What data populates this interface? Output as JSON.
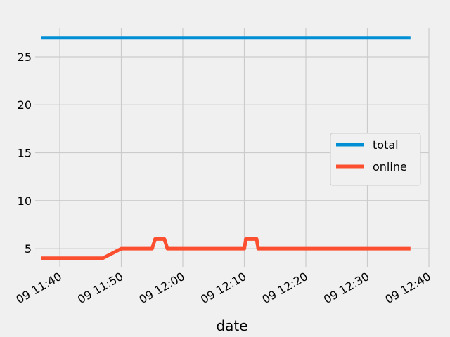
{
  "chart_data": {
    "type": "line",
    "title": "",
    "xlabel": "date",
    "ylabel": "",
    "x_tick_labels": [
      "09 11:40",
      "09 11:50",
      "09 12:00",
      "09 12:10",
      "09 12:20",
      "09 12:30",
      "09 12:40"
    ],
    "y_ticks": [
      5,
      10,
      15,
      20,
      25
    ],
    "ylim": [
      3.1,
      28.0
    ],
    "xlim": [
      "11:36",
      "12:40"
    ],
    "grid": true,
    "legend_position": "center-right",
    "series": [
      {
        "name": "total",
        "color": "#008fd5",
        "points": [
          {
            "x": "11:37",
            "y": 27
          },
          {
            "x": "12:37",
            "y": 27
          }
        ]
      },
      {
        "name": "online",
        "color": "#fc4f30",
        "points": [
          {
            "x": "11:37",
            "y": 4
          },
          {
            "x": "11:47",
            "y": 4
          },
          {
            "x": "11:50",
            "y": 5
          },
          {
            "x": "11:55",
            "y": 5
          },
          {
            "x": "11:55:30",
            "y": 6
          },
          {
            "x": "11:57",
            "y": 6
          },
          {
            "x": "11:57:30",
            "y": 5
          },
          {
            "x": "12:10",
            "y": 5
          },
          {
            "x": "12:10:15",
            "y": 6
          },
          {
            "x": "12:12",
            "y": 6
          },
          {
            "x": "12:12:15",
            "y": 5
          },
          {
            "x": "12:37",
            "y": 5
          }
        ]
      }
    ]
  }
}
